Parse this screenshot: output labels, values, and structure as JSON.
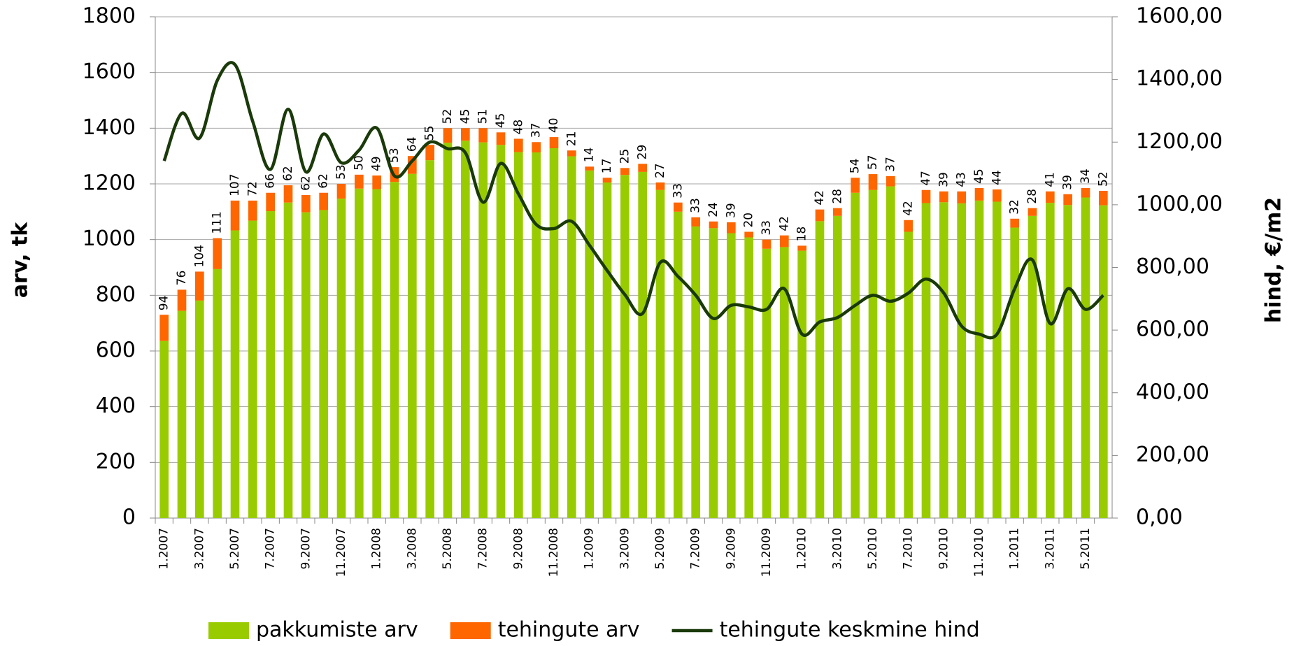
{
  "chart_data": {
    "type": "bar",
    "y_label": "arv, tk",
    "y2_label": "hind, €/m2",
    "categories": [
      "1.2007",
      null,
      "3.2007",
      null,
      "5.2007",
      null,
      "7.2007",
      null,
      "9.2007",
      null,
      "11.2007",
      null,
      "1.2008",
      null,
      "3.2008",
      null,
      "5.2008",
      null,
      "7.2008",
      null,
      "9.2008",
      null,
      "11.2008",
      null,
      "1.2009",
      null,
      "3.2009",
      null,
      "5.2009",
      null,
      "7.2009",
      null,
      "9.2009",
      null,
      "11.2009",
      null,
      "1.2010",
      null,
      "3.2010",
      null,
      "5.2010",
      null,
      "7.2010",
      null,
      "9.2010",
      null,
      "11.2010",
      null,
      "1.2011",
      null,
      "3.2011",
      null,
      "5.2011",
      null
    ],
    "series": [
      {
        "name": "pakkumiste arv",
        "color": "#99cc00",
        "stacked": true,
        "values": [
          636,
          744,
          781,
          894,
          1033,
          1068,
          1102,
          1133,
          1098,
          1106,
          1147,
          1183,
          1181,
          1207,
          1236,
          1285,
          1348,
          1355,
          1349,
          1340,
          1314,
          1313,
          1328,
          1299,
          1248,
          1205,
          1232,
          1243,
          1178,
          1100,
          1047,
          1041,
          1023,
          1008,
          967,
          973,
          960,
          1066,
          1085,
          1168,
          1178,
          1191,
          1028,
          1131,
          1134,
          1130,
          1140,
          1136,
          1043,
          1085,
          1132,
          1124,
          1151,
          1123
        ]
      },
      {
        "name": "tehingute arv",
        "color": "#ff6600",
        "stacked": true,
        "values": [
          94,
          76,
          104,
          111,
          107,
          72,
          66,
          62,
          62,
          62,
          53,
          50,
          49,
          53,
          64,
          55,
          52,
          45,
          51,
          45,
          48,
          37,
          40,
          21,
          14,
          17,
          25,
          29,
          27,
          33,
          33,
          24,
          39,
          20,
          33,
          42,
          18,
          42,
          28,
          54,
          57,
          37,
          42,
          47,
          39,
          43,
          45,
          44,
          32,
          28,
          41,
          39,
          34,
          52
        ]
      },
      {
        "name": "tehingute keskmine hind",
        "color": "#1a3a0a",
        "type": "line",
        "axis": "y2",
        "values": [
          1140,
          1292,
          1213,
          1397,
          1447,
          1266,
          1113,
          1305,
          1105,
          1226,
          1134,
          1174,
          1245,
          1092,
          1140,
          1200,
          1179,
          1166,
          1008,
          1132,
          1034,
          937,
          924,
          947,
          871,
          790,
          713,
          653,
          816,
          771,
          711,
          637,
          679,
          674,
          666,
          732,
          587,
          626,
          640,
          679,
          711,
          692,
          718,
          763,
          718,
          613,
          587,
          587,
          732,
          824,
          621,
          732,
          666,
          711
        ]
      }
    ],
    "ylim": [
      0,
      1800
    ],
    "yticks": [
      0,
      200,
      400,
      600,
      800,
      1000,
      1200,
      1400,
      1600,
      1800
    ],
    "y2lim": [
      0,
      1600
    ],
    "y2ticks": [
      {
        "value": 0,
        "label": "0,00"
      },
      {
        "value": 200,
        "label": "200,00"
      },
      {
        "value": 400,
        "label": "400,00"
      },
      {
        "value": 600,
        "label": "600,00"
      },
      {
        "value": 800,
        "label": "800,00"
      },
      {
        "value": 1000,
        "label": "1000,00"
      },
      {
        "value": 1200,
        "label": "1200,00"
      },
      {
        "value": 1400,
        "label": "1400,00"
      },
      {
        "value": 1600,
        "label": "1600,00"
      }
    ],
    "grid": true,
    "legend": "bottom"
  }
}
